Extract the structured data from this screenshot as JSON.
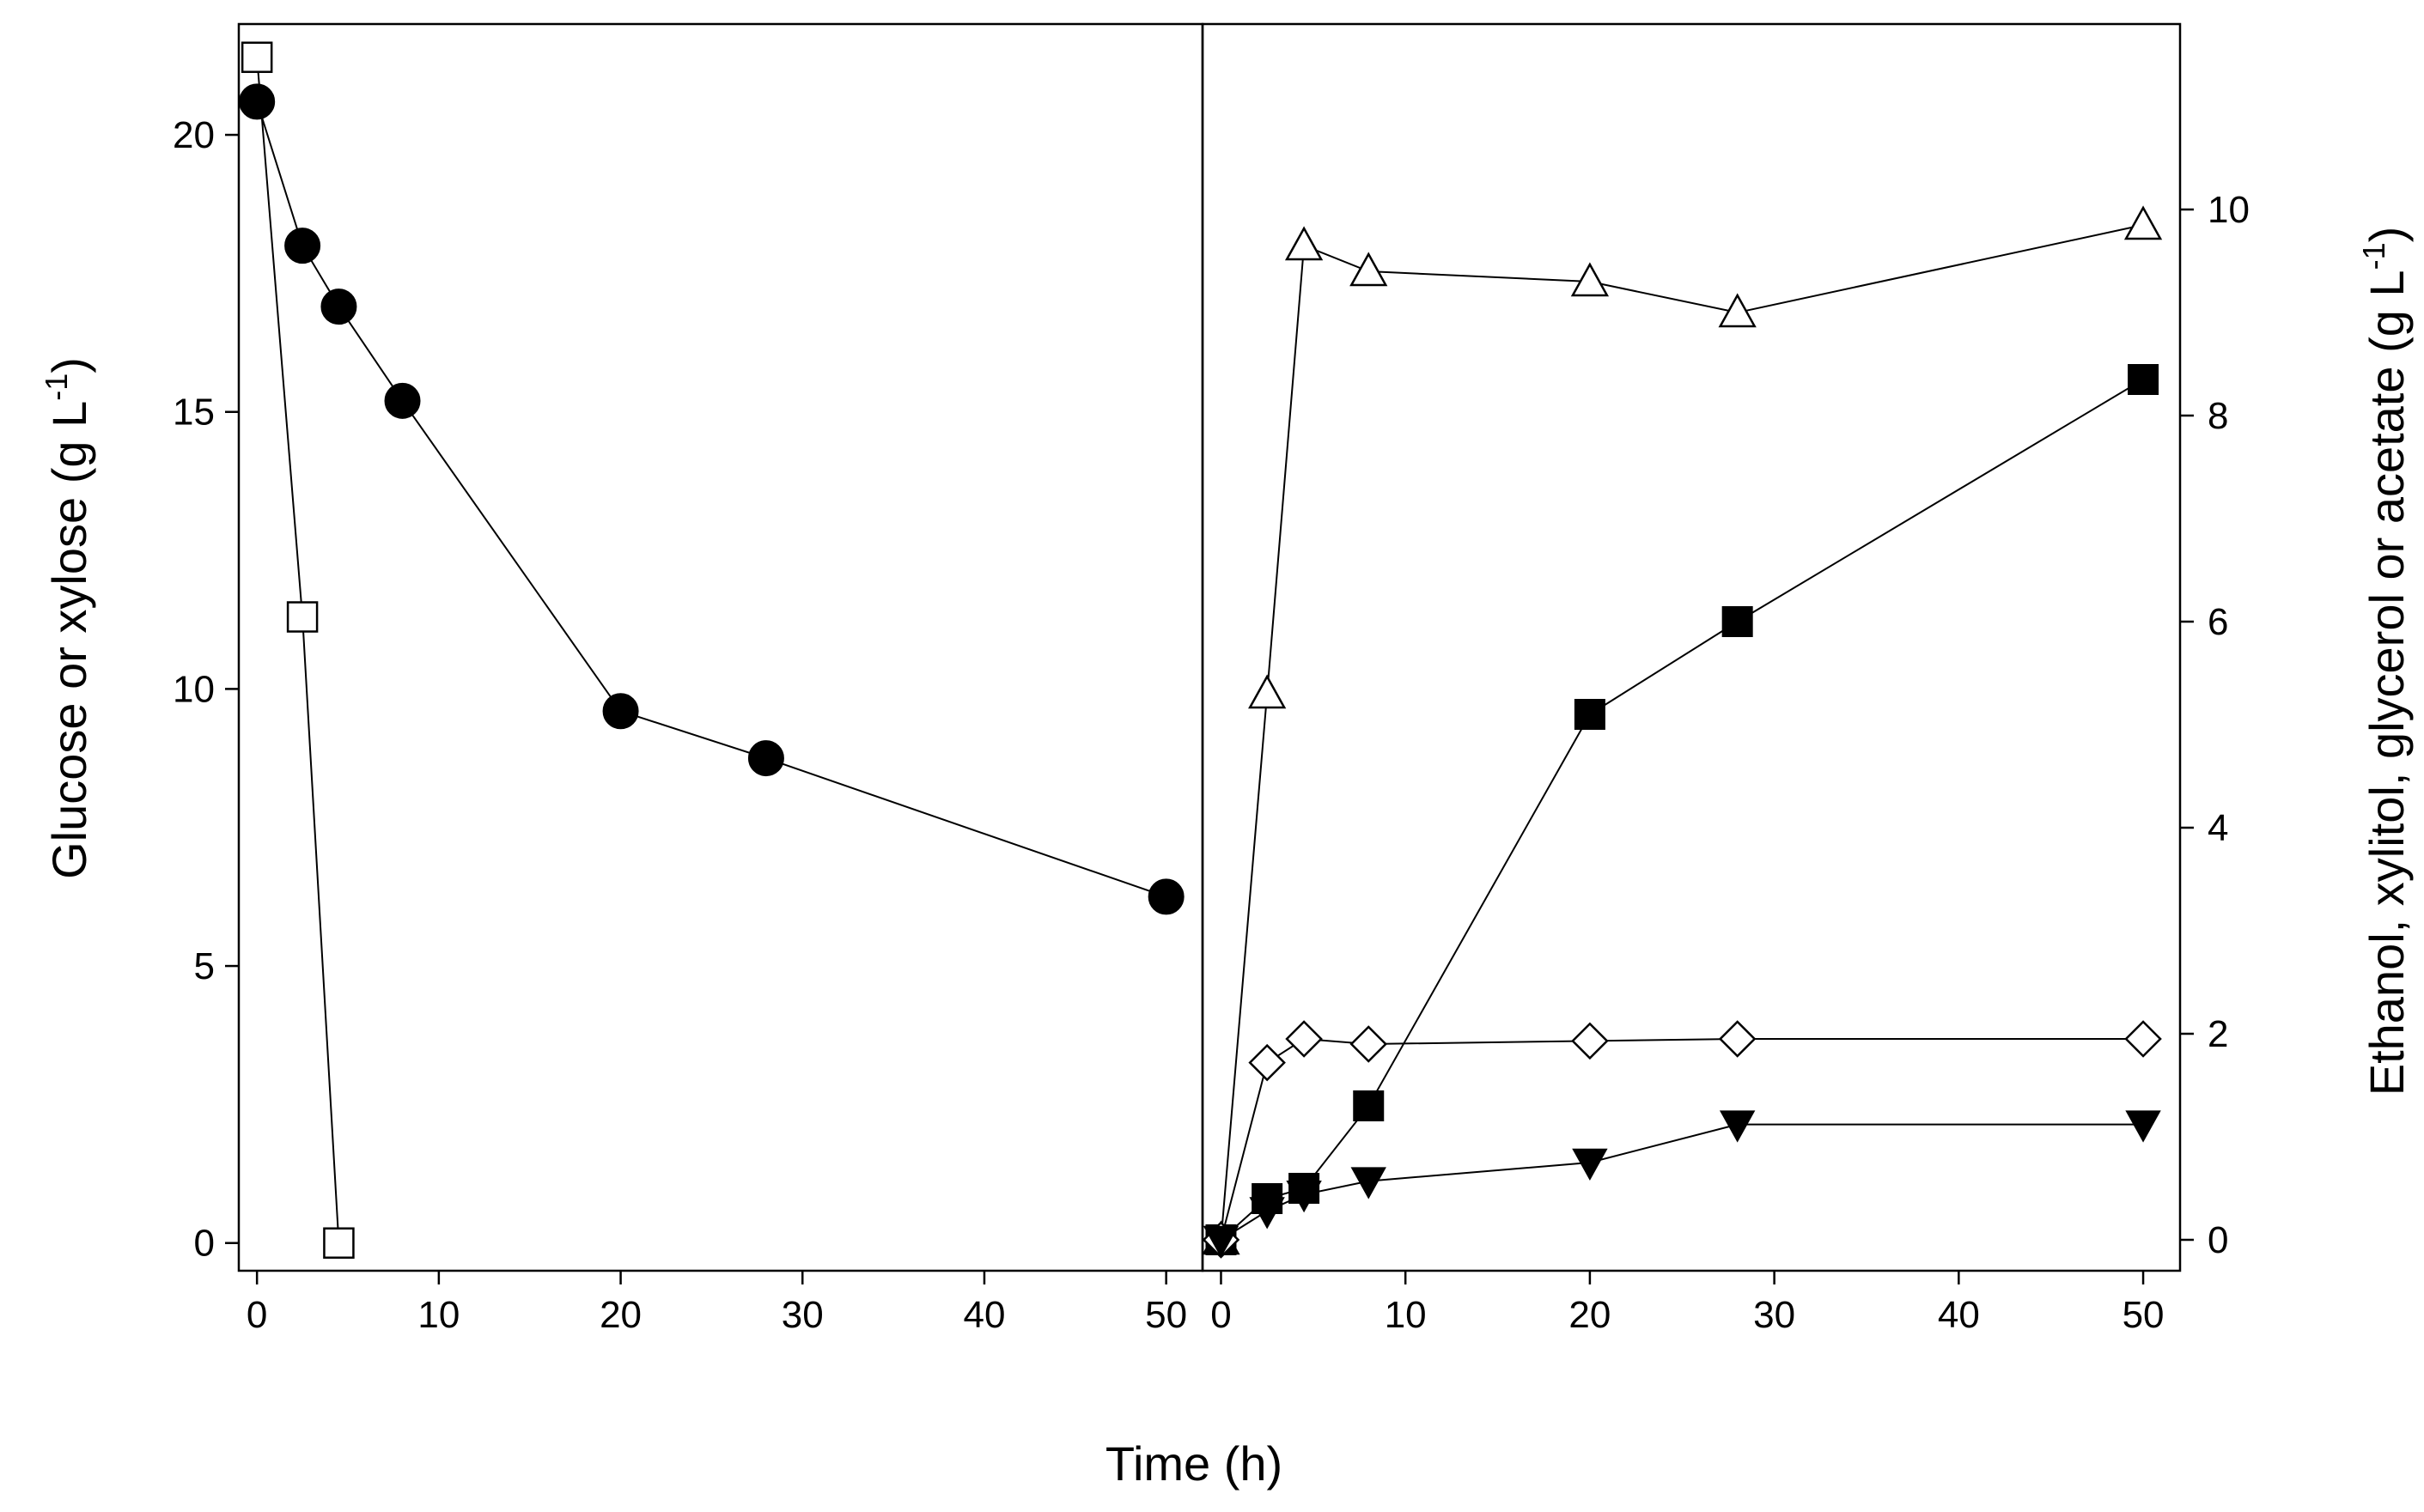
{
  "chart_data": [
    {
      "type": "scatter",
      "panel": "left",
      "xlabel": "Time (h)",
      "ylabel_main": "Glucose or xylose (g L",
      "ylabel_sup": "-1",
      "ylabel_close": ")",
      "xlim": [
        -1,
        52
      ],
      "ylim": [
        -0.5,
        22
      ],
      "xticks": [
        0,
        10,
        20,
        30,
        40,
        50
      ],
      "yticks": [
        0,
        5,
        10,
        15,
        20
      ],
      "series": [
        {
          "name": "glucose",
          "marker": "square-open",
          "x": [
            0,
            2.5,
            4.5
          ],
          "y": [
            21.4,
            11.3,
            0
          ]
        },
        {
          "name": "xylose",
          "marker": "circle-filled",
          "x": [
            0,
            2.5,
            4.5,
            8,
            20,
            28,
            50
          ],
          "y": [
            20.6,
            18.0,
            16.9,
            15.2,
            9.6,
            8.75,
            6.25
          ]
        }
      ]
    },
    {
      "type": "scatter",
      "panel": "right",
      "xlabel": "Time (h)",
      "ylabel_main": "Ethanol, xylitol, glycerol or acetate (g L",
      "ylabel_sup": "-1",
      "ylabel_close": ")",
      "xlim": [
        -1,
        52
      ],
      "ylim": [
        -0.3,
        11.8
      ],
      "xticks": [
        0,
        10,
        20,
        30,
        40,
        50
      ],
      "yticks": [
        0,
        2,
        4,
        6,
        8,
        10
      ],
      "series": [
        {
          "name": "ethanol",
          "marker": "triangle-up-open",
          "x": [
            0,
            2.5,
            4.5,
            8,
            20,
            28,
            50
          ],
          "y": [
            0,
            5.3,
            9.65,
            9.4,
            9.3,
            9.0,
            9.85
          ]
        },
        {
          "name": "xylitol",
          "marker": "square-filled",
          "x": [
            0,
            2.5,
            4.5,
            8,
            20,
            28,
            50
          ],
          "y": [
            0,
            0.4,
            0.5,
            1.3,
            5.1,
            6.0,
            8.35
          ]
        },
        {
          "name": "glycerol",
          "marker": "diamond-open",
          "x": [
            0,
            2.5,
            4.5,
            8,
            20,
            28,
            50
          ],
          "y": [
            0,
            1.72,
            1.95,
            1.9,
            1.93,
            1.95,
            1.95
          ]
        },
        {
          "name": "acetate",
          "marker": "triangle-down-filled",
          "x": [
            0,
            2.5,
            4.5,
            8,
            20,
            28,
            50
          ],
          "y": [
            0,
            0.28,
            0.44,
            0.57,
            0.75,
            1.12,
            1.12
          ]
        }
      ]
    }
  ]
}
